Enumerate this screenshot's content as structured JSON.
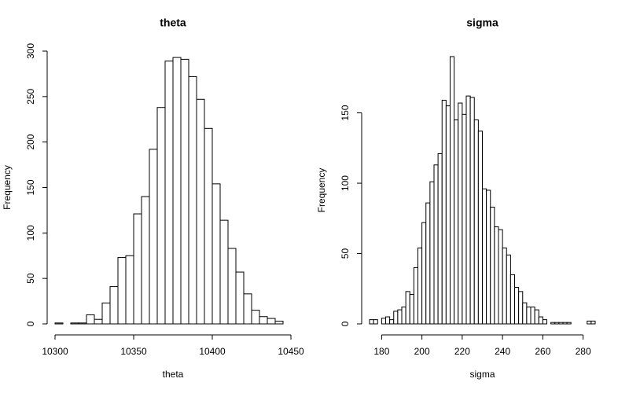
{
  "chart_data": [
    {
      "type": "histogram",
      "title": "theta",
      "x_label": "theta",
      "y_label": "Frequency",
      "bins": [
        10300,
        10305,
        10310,
        10315,
        10320,
        10325,
        10330,
        10335,
        10340,
        10345,
        10350,
        10355,
        10360,
        10365,
        10370,
        10375,
        10380,
        10385,
        10390,
        10395,
        10400,
        10405,
        10410,
        10415,
        10420,
        10425,
        10430,
        10435,
        10440,
        10445
      ],
      "values": [
        1,
        0,
        1,
        1,
        10,
        5,
        23,
        41,
        73,
        75,
        121,
        140,
        192,
        238,
        289,
        293,
        291,
        272,
        247,
        215,
        154,
        114,
        83,
        57,
        33,
        15,
        8,
        6,
        3
      ],
      "color": "#ffffff",
      "xlim": [
        10300,
        10450
      ],
      "xticks": [
        10300,
        10350,
        10400,
        10450
      ],
      "ylim": [
        0,
        300
      ],
      "yticks": [
        0,
        50,
        100,
        150,
        200,
        250,
        300
      ]
    },
    {
      "type": "histogram",
      "title": "sigma",
      "x_label": "sigma",
      "y_label": "Frequency",
      "bins": [
        174,
        176,
        178,
        180,
        182,
        184,
        186,
        188,
        190,
        192,
        194,
        196,
        198,
        200,
        202,
        204,
        206,
        208,
        210,
        212,
        214,
        216,
        218,
        220,
        222,
        224,
        226,
        228,
        230,
        232,
        234,
        236,
        238,
        240,
        242,
        244,
        246,
        248,
        250,
        252,
        254,
        256,
        258,
        260,
        262,
        264,
        266,
        268,
        270,
        272,
        274,
        276,
        278,
        280,
        282,
        284,
        286
      ],
      "values": [
        3,
        3,
        0,
        4,
        5,
        3,
        9,
        10,
        12,
        23,
        21,
        40,
        54,
        72,
        86,
        101,
        113,
        121,
        159,
        155,
        190,
        145,
        157,
        149,
        162,
        161,
        145,
        137,
        96,
        95,
        83,
        69,
        67,
        54,
        49,
        35,
        26,
        23,
        15,
        12,
        12,
        10,
        5,
        3,
        0,
        1,
        1,
        1,
        1,
        1,
        0,
        0,
        0,
        0,
        2,
        2
      ],
      "color": "#ffffff",
      "xlim": [
        174,
        286
      ],
      "xticks": [
        180,
        200,
        220,
        240,
        260,
        280
      ],
      "ylim": [
        0,
        190
      ],
      "yticks": [
        0,
        50,
        100,
        150
      ]
    }
  ]
}
